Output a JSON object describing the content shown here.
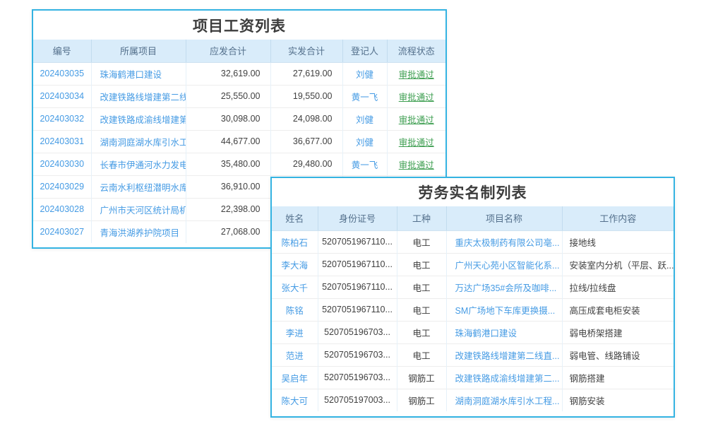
{
  "colors": {
    "table_border": "#34b3e2",
    "header_bg": "#d9ecfa",
    "header_text": "#54708c",
    "link_blue": "#459be4",
    "status_green": "#3d9e50",
    "body_text": "#404040"
  },
  "salary_table": {
    "title": "项目工资列表",
    "headers": [
      "编号",
      "所属项目",
      "应发合计",
      "实发合计",
      "登记人",
      "流程状态"
    ],
    "rows": [
      [
        "202403035",
        "珠海鹤港口建设",
        "32,619.00",
        "27,619.00",
        "刘健",
        "审批通过"
      ],
      [
        "202403034",
        "改建铁路线增建第二线...",
        "25,550.00",
        "19,550.00",
        "黄一飞",
        "审批通过"
      ],
      [
        "202403032",
        "改建铁路成渝线增建第...",
        "30,098.00",
        "24,098.00",
        "刘健",
        "审批通过"
      ],
      [
        "202403031",
        "湖南洞庭湖水库引水工...",
        "44,677.00",
        "36,677.00",
        "刘健",
        "审批通过"
      ],
      [
        "202403030",
        "长春市伊通河水力发电...",
        "35,480.00",
        "29,480.00",
        "黄一飞",
        "审批通过"
      ],
      [
        "202403029",
        "云南水利枢纽潜明水库...",
        "36,910.00",
        "",
        "",
        ""
      ],
      [
        "202403028",
        "广州市天河区统计局机...",
        "22,398.00",
        "",
        "",
        ""
      ],
      [
        "202403027",
        "青海洪湖养护院项目",
        "27,068.00",
        "",
        "",
        ""
      ]
    ]
  },
  "labor_table": {
    "title": "劳务实名制列表",
    "headers": [
      "姓名",
      "身份证号",
      "工种",
      "项目名称",
      "工作内容"
    ],
    "rows": [
      [
        "陈柏石",
        "5207051967110...",
        "电工",
        "重庆太极制药有限公司亳...",
        "接地线"
      ],
      [
        "李大海",
        "5207051967110...",
        "电工",
        "广州天心苑小区智能化系...",
        "安装室内分机（平层、跃..."
      ],
      [
        "张大千",
        "5207051967110...",
        "电工",
        "万达广场35#会所及咖啡...",
        "拉线/拉线盘"
      ],
      [
        "陈铭",
        "5207051967110...",
        "电工",
        "SM广场地下车库更换摄...",
        "高压成套电柜安装"
      ],
      [
        "李进",
        "520705196703...",
        "电工",
        "珠海鹤港口建设",
        "弱电桥架搭建"
      ],
      [
        "范进",
        "520705196703...",
        "电工",
        "改建铁路线增建第二线直...",
        "弱电管、线路铺设"
      ],
      [
        "吴启年",
        "520705196703...",
        "钢筋工",
        "改建铁路成渝线增建第二...",
        "钢筋搭建"
      ],
      [
        "陈大可",
        "520705197003...",
        "钢筋工",
        "湖南洞庭湖水库引水工程...",
        "钢筋安装"
      ]
    ]
  }
}
